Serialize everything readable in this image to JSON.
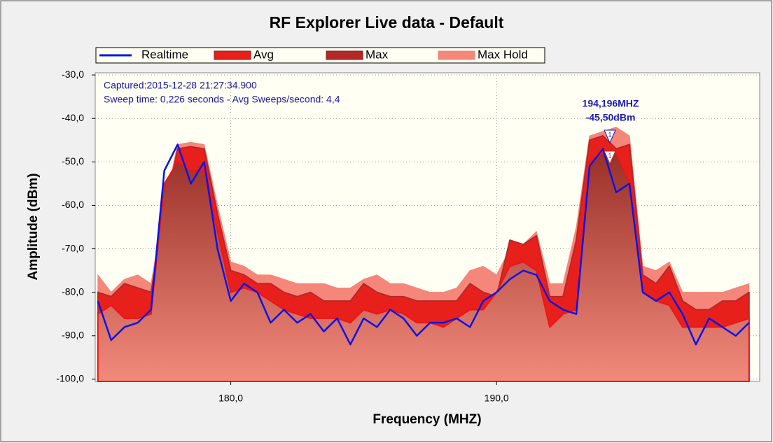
{
  "chart_data": {
    "type": "area-line",
    "title": "RF Explorer Live data - Default",
    "xlabel": "Frequency (MHZ)",
    "ylabel": "Amplitude (dBm)",
    "annotations": [
      "Captured:2015-12-28 21:27:34.900",
      "Sweep time: 0,226 seconds - Avg Sweeps/second: 4,4",
      "194,196MHZ",
      "-45,50dBm"
    ],
    "legend": "top",
    "grid": true,
    "xlim": [
      174.9,
      199.9
    ],
    "ylim": [
      -100.5,
      -29.5
    ],
    "xticks": [
      {
        "value": 180,
        "label": "180,0"
      },
      {
        "value": 190,
        "label": "190,0"
      }
    ],
    "yticks": [
      {
        "value": -30,
        "label": "-30,0"
      },
      {
        "value": -40,
        "label": "-40,0"
      },
      {
        "value": -50,
        "label": "-50,0"
      },
      {
        "value": -60,
        "label": "-60,0"
      },
      {
        "value": -70,
        "label": "-70,0"
      },
      {
        "value": -80,
        "label": "-80,0"
      },
      {
        "value": -90,
        "label": "-90,0"
      },
      {
        "value": -100,
        "label": "-100,0"
      }
    ],
    "x": [
      175,
      175.5,
      176,
      176.5,
      177,
      177.5,
      178,
      178.5,
      179,
      179.5,
      180,
      180.5,
      181,
      181.5,
      182,
      182.5,
      183,
      183.5,
      184,
      184.5,
      185,
      185.5,
      186,
      186.5,
      187,
      187.5,
      188,
      188.5,
      189,
      189.5,
      190,
      190.5,
      191,
      191.5,
      192,
      192.5,
      193,
      193.5,
      194,
      194.5,
      195,
      195.5,
      196,
      196.5,
      197,
      197.5,
      198,
      198.5,
      199,
      199.5
    ],
    "series": [
      {
        "name": "Realtime",
        "color": "#0a14e6",
        "values": [
          -82,
          -91,
          -88,
          -87,
          -84,
          -52,
          -46,
          -55,
          -50,
          -70,
          -82,
          -78,
          -80,
          -87,
          -84,
          -87,
          -85,
          -89,
          -86,
          -92,
          -86,
          -88,
          -84,
          -86,
          -90,
          -87,
          -87,
          -86,
          -88,
          -82,
          -80,
          -77,
          -75,
          -76,
          -82,
          -84,
          -85,
          -51,
          -47,
          -57,
          -55,
          -80,
          -82,
          -80,
          -85,
          -92,
          -86,
          -88,
          -90,
          -87
        ]
      },
      {
        "name": "Avg",
        "color": "#f01414",
        "values": [
          -85,
          -83,
          -86,
          -86,
          -85,
          -55,
          -50,
          -52,
          -52,
          -66,
          -80,
          -79,
          -80,
          -82,
          -84,
          -85,
          -86,
          -86,
          -86,
          -87,
          -84,
          -85,
          -84,
          -85,
          -87,
          -87,
          -88,
          -86,
          -84,
          -84,
          -80,
          -74,
          -73,
          -75,
          -88,
          -85,
          -84,
          -50,
          -48,
          -48,
          -55,
          -80,
          -82,
          -83,
          -88,
          -88,
          -88,
          -88,
          -87,
          -86
        ]
      },
      {
        "name": "Max",
        "color": "#b42828",
        "values": [
          -80,
          -81,
          -78,
          -79,
          -80,
          -62,
          -47,
          -46.5,
          -47,
          -62,
          -75,
          -76,
          -78,
          -78,
          -80,
          -81,
          -80,
          -82,
          -82,
          -82,
          -78,
          -80,
          -81,
          -81,
          -82,
          -82,
          -82,
          -82,
          -78,
          -80,
          -81,
          -68,
          -69,
          -67,
          -81,
          -81,
          -68,
          -45,
          -44,
          -47,
          -46,
          -76,
          -78,
          -74,
          -82,
          -84,
          -84,
          -82,
          -82,
          -80
        ]
      },
      {
        "name": "Max Hold",
        "color": "#f4867a",
        "values": [
          -76,
          -80,
          -77,
          -76,
          -78,
          -60,
          -46,
          -45.5,
          -46,
          -60,
          -73,
          -74,
          -76,
          -76,
          -77,
          -78,
          -78,
          -78,
          -79,
          -79,
          -77,
          -76,
          -78,
          -78,
          -79,
          -80,
          -80,
          -79,
          -75,
          -74,
          -76,
          -70,
          -69,
          -66,
          -78,
          -78,
          -65,
          -44,
          -43,
          -42,
          -44,
          -74,
          -75,
          -73,
          -80,
          -80,
          -80,
          -80,
          -79,
          -78
        ]
      }
    ]
  }
}
